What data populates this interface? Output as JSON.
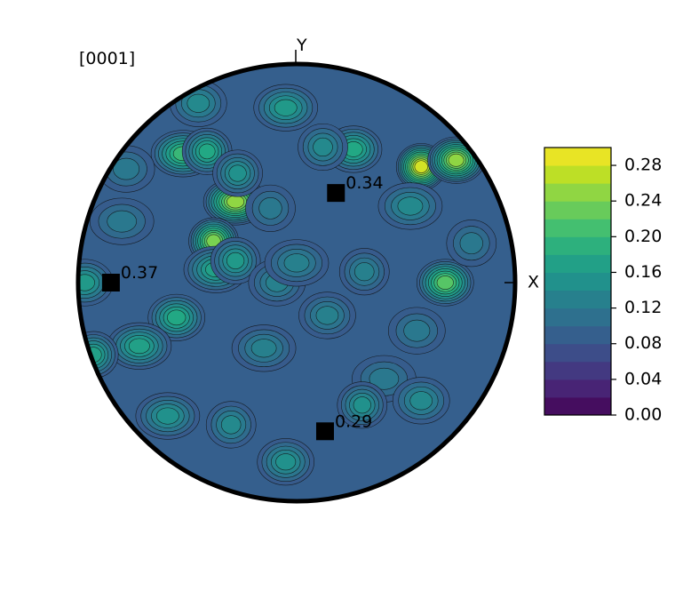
{
  "chart_data": {
    "type": "heatmap",
    "projection": "pole-figure",
    "pole_label": "[0001]",
    "axes": {
      "x_label": "X",
      "y_label": "Y"
    },
    "colorbar": {
      "colormap": "viridis",
      "range": [
        0.0,
        0.3
      ],
      "levels": 15,
      "ticks": [
        "0.00",
        "0.04",
        "0.08",
        "0.12",
        "0.16",
        "0.20",
        "0.24",
        "0.28"
      ],
      "tick_values": [
        0.0,
        0.04,
        0.08,
        0.12,
        0.16,
        0.2,
        0.24,
        0.28
      ]
    },
    "markers": [
      {
        "label": "0.34",
        "value": 0.34,
        "x": 0.18,
        "y": 0.41
      },
      {
        "label": "0.37",
        "value": 0.37,
        "x": -0.85,
        "y": 0.0
      },
      {
        "label": "0.29",
        "value": 0.29,
        "x": 0.13,
        "y": -0.68
      }
    ],
    "hotspots": [
      {
        "x": 0.57,
        "y": 0.53,
        "value": 0.28
      },
      {
        "x": 0.73,
        "y": 0.56,
        "value": 0.25
      },
      {
        "x": -0.28,
        "y": 0.37,
        "value": 0.25
      },
      {
        "x": -0.38,
        "y": 0.19,
        "value": 0.24
      },
      {
        "x": 0.68,
        "y": 0.0,
        "value": 0.22
      },
      {
        "x": -0.52,
        "y": 0.59,
        "value": 0.2
      },
      {
        "x": -0.41,
        "y": 0.6,
        "value": 0.18
      },
      {
        "x": 0.26,
        "y": 0.61,
        "value": 0.18
      },
      {
        "x": -0.05,
        "y": 0.8,
        "value": 0.16
      },
      {
        "x": -0.27,
        "y": 0.5,
        "value": 0.15
      },
      {
        "x": -0.55,
        "y": -0.16,
        "value": 0.18
      },
      {
        "x": -0.72,
        "y": -0.29,
        "value": 0.17
      },
      {
        "x": -0.93,
        "y": -0.33,
        "value": 0.17
      },
      {
        "x": -0.97,
        "y": 0.0,
        "value": 0.16
      },
      {
        "x": -0.37,
        "y": 0.06,
        "value": 0.17
      },
      {
        "x": -0.28,
        "y": 0.1,
        "value": 0.16
      },
      {
        "x": -0.09,
        "y": 0.0,
        "value": 0.13
      },
      {
        "x": 0.0,
        "y": 0.09,
        "value": 0.13
      },
      {
        "x": 0.31,
        "y": 0.05,
        "value": 0.13
      },
      {
        "x": 0.14,
        "y": -0.15,
        "value": 0.13
      },
      {
        "x": 0.4,
        "y": -0.44,
        "value": 0.12
      },
      {
        "x": 0.3,
        "y": -0.56,
        "value": 0.15
      },
      {
        "x": 0.57,
        "y": -0.54,
        "value": 0.14
      },
      {
        "x": -0.59,
        "y": -0.61,
        "value": 0.15
      },
      {
        "x": -0.3,
        "y": -0.65,
        "value": 0.14
      },
      {
        "x": -0.05,
        "y": -0.82,
        "value": 0.15
      },
      {
        "x": 0.52,
        "y": 0.35,
        "value": 0.14
      },
      {
        "x": 0.12,
        "y": 0.62,
        "value": 0.14
      },
      {
        "x": -0.78,
        "y": 0.52,
        "value": 0.12
      },
      {
        "x": -0.8,
        "y": 0.28,
        "value": 0.12
      },
      {
        "x": 0.8,
        "y": 0.18,
        "value": 0.12
      },
      {
        "x": 0.55,
        "y": -0.22,
        "value": 0.12
      },
      {
        "x": -0.15,
        "y": -0.3,
        "value": 0.13
      },
      {
        "x": -0.12,
        "y": 0.34,
        "value": 0.12
      },
      {
        "x": -0.45,
        "y": 0.82,
        "value": 0.14
      }
    ]
  }
}
